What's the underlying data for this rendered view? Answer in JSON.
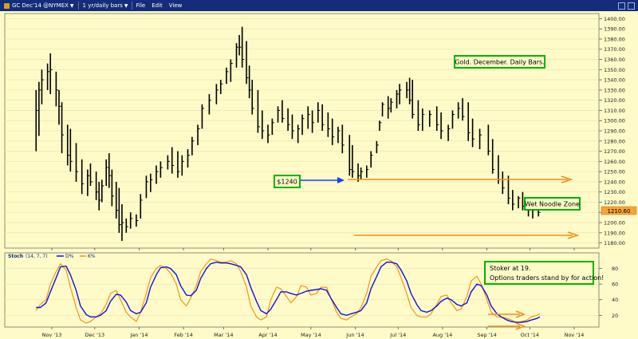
{
  "toolbar": {
    "symbol": "GC Dec'14 @NYMEX",
    "period": "1 yr/daily bars",
    "menu": [
      "File",
      "Edit",
      "View"
    ],
    "symbol_icon": "gold-bar-icon",
    "window_icons": [
      "minimize-icon",
      "maximize-icon"
    ]
  },
  "colors": {
    "background": "#fefbc8",
    "toolbar": "#142c7a",
    "bars": "#000000",
    "pointer_arrow": "#1b3cff",
    "orange_lines": "#f2901e",
    "annotation_border": "#00b400",
    "last_price_badge": "#f5a43a",
    "d_line": "#1010e0",
    "k_line": "#f29518"
  },
  "annotations": {
    "title_box": "Gold. December. Daily Bars.",
    "price_box": "$1240",
    "zone_box": "Wet Noodle Zone",
    "stoch_line1": "Stoker at 19.",
    "stoch_line2": "Options traders stand by for action!"
  },
  "stoch_header": {
    "name": "Stoch",
    "params": "(14, 7, 7)",
    "d_label": "D%",
    "k_label": "K%"
  },
  "chart_data": [
    {
      "type": "bar",
      "subtype": "ohlc",
      "title": "Gold. December. Daily Bars.",
      "x_tick_labels": [
        "Nov '13",
        "Dec '13",
        "Jan '14",
        "Feb '14",
        "Mar '14",
        "Apr '14",
        "May '14",
        "Jun '14",
        "Jul '14",
        "Aug '14",
        "Sep '14",
        "Oct '14",
        "Nov '14"
      ],
      "y_tick_labels": [
        "1180.00",
        "1190.00",
        "1200.00",
        "1210.00",
        "1220.00",
        "1230.00",
        "1240.00",
        "1250.00",
        "1260.00",
        "1270.00",
        "1280.00",
        "1290.00",
        "1300.00",
        "1310.00",
        "1320.00",
        "1330.00",
        "1340.00",
        "1350.00",
        "1360.00",
        "1370.00",
        "1380.00",
        "1390.00",
        "1400.00"
      ],
      "ylim": [
        1175,
        1405
      ],
      "last_price": "1210.60",
      "x": [
        "2013-10-21",
        "2013-10-23",
        "2013-10-25",
        "2013-10-29",
        "2013-10-31",
        "2013-11-04",
        "2013-11-06",
        "2013-11-08",
        "2013-11-12",
        "2013-11-14",
        "2013-11-18",
        "2013-11-22",
        "2013-11-26",
        "2013-11-28",
        "2013-12-02",
        "2013-12-04",
        "2013-12-06",
        "2013-12-09",
        "2013-12-11",
        "2013-12-13",
        "2013-12-16",
        "2013-12-18",
        "2013-12-20",
        "2013-12-23",
        "2013-12-26",
        "2013-12-30",
        "2014-01-02",
        "2014-01-06",
        "2014-01-09",
        "2014-01-13",
        "2014-01-16",
        "2014-01-21",
        "2014-01-24",
        "2014-01-28",
        "2014-01-31",
        "2014-02-04",
        "2014-02-07",
        "2014-02-11",
        "2014-02-14",
        "2014-02-19",
        "2014-02-24",
        "2014-02-27",
        "2014-03-03",
        "2014-03-06",
        "2014-03-10",
        "2014-03-12",
        "2014-03-14",
        "2014-03-17",
        "2014-03-19",
        "2014-03-21",
        "2014-03-25",
        "2014-03-28",
        "2014-04-01",
        "2014-04-04",
        "2014-04-08",
        "2014-04-11",
        "2014-04-15",
        "2014-04-18",
        "2014-04-22",
        "2014-04-25",
        "2014-04-29",
        "2014-05-02",
        "2014-05-06",
        "2014-05-09",
        "2014-05-13",
        "2014-05-16",
        "2014-05-20",
        "2014-05-23",
        "2014-05-28",
        "2014-05-30",
        "2014-06-03",
        "2014-06-05",
        "2014-06-09",
        "2014-06-12",
        "2014-06-16",
        "2014-06-18",
        "2014-06-20",
        "2014-06-24",
        "2014-06-26",
        "2014-06-30",
        "2014-07-02",
        "2014-07-07",
        "2014-07-09",
        "2014-07-11",
        "2014-07-15",
        "2014-07-18",
        "2014-07-23",
        "2014-07-28",
        "2014-07-31",
        "2014-08-05",
        "2014-08-08",
        "2014-08-12",
        "2014-08-15",
        "2014-08-19",
        "2014-08-22",
        "2014-08-27",
        "2014-09-02",
        "2014-09-05",
        "2014-09-09",
        "2014-09-12",
        "2014-09-16",
        "2014-09-19",
        "2014-09-23",
        "2014-09-26",
        "2014-09-30",
        "2014-10-03",
        "2014-10-07"
      ],
      "high": [
        1330,
        1338,
        1350,
        1356,
        1366,
        1348,
        1330,
        1318,
        1296,
        1292,
        1278,
        1262,
        1252,
        1258,
        1250,
        1240,
        1242,
        1262,
        1268,
        1252,
        1240,
        1234,
        1218,
        1204,
        1210,
        1208,
        1228,
        1246,
        1248,
        1256,
        1260,
        1266,
        1274,
        1270,
        1266,
        1272,
        1284,
        1296,
        1316,
        1326,
        1336,
        1340,
        1352,
        1360,
        1376,
        1384,
        1392,
        1378,
        1354,
        1340,
        1330,
        1310,
        1296,
        1302,
        1314,
        1320,
        1312,
        1306,
        1296,
        1306,
        1314,
        1310,
        1318,
        1316,
        1308,
        1302,
        1294,
        1296,
        1286,
        1276,
        1258,
        1254,
        1256,
        1270,
        1280,
        1300,
        1318,
        1324,
        1322,
        1330,
        1336,
        1338,
        1342,
        1340,
        1320,
        1312,
        1310,
        1314,
        1308,
        1296,
        1310,
        1318,
        1322,
        1318,
        1302,
        1292,
        1296,
        1282,
        1266,
        1250,
        1246,
        1232,
        1226,
        1230,
        1222,
        1218,
        1214
      ],
      "low": [
        1270,
        1285,
        1316,
        1330,
        1326,
        1314,
        1296,
        1268,
        1256,
        1250,
        1240,
        1228,
        1226,
        1236,
        1222,
        1212,
        1220,
        1236,
        1234,
        1216,
        1204,
        1190,
        1182,
        1190,
        1194,
        1196,
        1204,
        1224,
        1230,
        1238,
        1244,
        1252,
        1248,
        1244,
        1246,
        1254,
        1266,
        1276,
        1292,
        1306,
        1316,
        1326,
        1336,
        1338,
        1352,
        1364,
        1352,
        1336,
        1322,
        1306,
        1288,
        1282,
        1278,
        1286,
        1298,
        1298,
        1290,
        1282,
        1278,
        1286,
        1292,
        1288,
        1298,
        1290,
        1284,
        1276,
        1278,
        1268,
        1246,
        1244,
        1240,
        1242,
        1244,
        1254,
        1268,
        1290,
        1304,
        1302,
        1308,
        1312,
        1316,
        1322,
        1316,
        1302,
        1290,
        1290,
        1294,
        1290,
        1282,
        1280,
        1292,
        1302,
        1300,
        1280,
        1274,
        1272,
        1266,
        1248,
        1238,
        1228,
        1218,
        1212,
        1214,
        1212,
        1206,
        1204,
        1206
      ],
      "close": [
        1310,
        1330,
        1340,
        1348,
        1350,
        1330,
        1314,
        1286,
        1266,
        1260,
        1250,
        1238,
        1246,
        1240,
        1230,
        1222,
        1236,
        1254,
        1246,
        1226,
        1212,
        1198,
        1200,
        1196,
        1204,
        1202,
        1222,
        1240,
        1242,
        1250,
        1254,
        1260,
        1256,
        1250,
        1260,
        1266,
        1280,
        1292,
        1312,
        1320,
        1330,
        1336,
        1348,
        1356,
        1372,
        1372,
        1360,
        1342,
        1330,
        1312,
        1294,
        1290,
        1286,
        1298,
        1310,
        1302,
        1296,
        1290,
        1292,
        1302,
        1306,
        1298,
        1310,
        1296,
        1292,
        1284,
        1290,
        1276,
        1252,
        1250,
        1246,
        1250,
        1252,
        1266,
        1276,
        1298,
        1316,
        1312,
        1318,
        1326,
        1330,
        1330,
        1320,
        1306,
        1296,
        1306,
        1306,
        1296,
        1290,
        1292,
        1306,
        1312,
        1304,
        1288,
        1282,
        1286,
        1270,
        1252,
        1242,
        1234,
        1224,
        1218,
        1224,
        1216,
        1212,
        1212,
        1210
      ]
    },
    {
      "type": "line",
      "title": "Stoch (14, 7, 7)",
      "x_tick_labels": [
        "Nov '13",
        "Dec '13",
        "Jan '14",
        "Feb '14",
        "Mar '14",
        "Apr '14",
        "May '14",
        "Jun '14",
        "Jul '14",
        "Aug '14",
        "Sep '14",
        "Oct '14",
        "Nov '14"
      ],
      "y_tick_labels": [
        "20",
        "40",
        "60",
        "80"
      ],
      "ylim": [
        5,
        100
      ],
      "x": [
        "2013-10-21",
        "2013-10-24",
        "2013-10-28",
        "2013-10-31",
        "2013-11-04",
        "2013-11-07",
        "2013-11-11",
        "2013-11-14",
        "2013-11-18",
        "2013-11-21",
        "2013-11-25",
        "2013-11-28",
        "2013-12-02",
        "2013-12-05",
        "2013-12-09",
        "2013-12-12",
        "2013-12-16",
        "2013-12-19",
        "2013-12-23",
        "2013-12-26",
        "2013-12-30",
        "2014-01-02",
        "2014-01-06",
        "2014-01-09",
        "2014-01-13",
        "2014-01-16",
        "2014-01-20",
        "2014-01-23",
        "2014-01-27",
        "2014-01-30",
        "2014-02-03",
        "2014-02-06",
        "2014-02-10",
        "2014-02-13",
        "2014-02-17",
        "2014-02-20",
        "2014-02-24",
        "2014-02-27",
        "2014-03-03",
        "2014-03-06",
        "2014-03-10",
        "2014-03-13",
        "2014-03-17",
        "2014-03-20",
        "2014-03-24",
        "2014-03-27",
        "2014-03-31",
        "2014-04-03",
        "2014-04-07",
        "2014-04-10",
        "2014-04-14",
        "2014-04-17",
        "2014-04-21",
        "2014-04-24",
        "2014-04-28",
        "2014-05-01",
        "2014-05-05",
        "2014-05-08",
        "2014-05-12",
        "2014-05-15",
        "2014-05-19",
        "2014-05-22",
        "2014-05-26",
        "2014-05-29",
        "2014-06-02",
        "2014-06-05",
        "2014-06-09",
        "2014-06-12",
        "2014-06-16",
        "2014-06-19",
        "2014-06-23",
        "2014-06-26",
        "2014-06-30",
        "2014-07-03",
        "2014-07-07",
        "2014-07-10",
        "2014-07-14",
        "2014-07-17",
        "2014-07-21",
        "2014-07-24",
        "2014-07-28",
        "2014-07-31",
        "2014-08-04",
        "2014-08-07",
        "2014-08-11",
        "2014-08-14",
        "2014-08-18",
        "2014-08-21",
        "2014-08-25",
        "2014-08-28",
        "2014-09-01",
        "2014-09-04",
        "2014-09-08",
        "2014-09-11",
        "2014-09-15",
        "2014-09-18",
        "2014-09-22",
        "2014-09-25",
        "2014-09-29",
        "2014-10-02",
        "2014-10-06",
        "2014-10-08"
      ],
      "series": [
        {
          "name": "D%",
          "values": [
            30,
            30,
            36,
            50,
            68,
            82,
            83,
            72,
            52,
            32,
            21,
            18,
            18,
            20,
            26,
            38,
            47,
            46,
            37,
            26,
            22,
            24,
            36,
            56,
            72,
            81,
            82,
            80,
            72,
            58,
            46,
            45,
            52,
            67,
            80,
            86,
            88,
            87,
            87,
            86,
            84,
            82,
            72,
            56,
            38,
            26,
            22,
            28,
            40,
            50,
            50,
            48,
            46,
            48,
            51,
            52,
            53,
            54,
            52,
            42,
            30,
            22,
            20,
            22,
            24,
            26,
            36,
            54,
            70,
            82,
            88,
            88,
            86,
            78,
            64,
            48,
            34,
            26,
            24,
            26,
            32,
            38,
            42,
            40,
            34,
            32,
            36,
            50,
            60,
            58,
            46,
            32,
            22,
            18,
            14,
            12,
            11,
            11,
            12,
            14,
            16,
            18
          ]
        },
        {
          "name": "K%",
          "values": [
            26,
            34,
            40,
            60,
            76,
            86,
            78,
            56,
            30,
            14,
            10,
            12,
            18,
            22,
            34,
            48,
            52,
            40,
            24,
            18,
            12,
            24,
            48,
            68,
            80,
            84,
            80,
            74,
            60,
            40,
            32,
            42,
            58,
            76,
            86,
            92,
            90,
            88,
            88,
            90,
            86,
            76,
            56,
            32,
            18,
            14,
            18,
            40,
            56,
            54,
            44,
            36,
            44,
            58,
            56,
            46,
            48,
            56,
            56,
            42,
            24,
            16,
            14,
            18,
            22,
            30,
            48,
            70,
            82,
            90,
            92,
            90,
            82,
            68,
            48,
            30,
            20,
            18,
            18,
            22,
            34,
            44,
            46,
            36,
            26,
            28,
            44,
            64,
            70,
            60,
            40,
            24,
            18,
            18,
            16,
            14,
            10,
            12,
            14,
            18,
            20,
            22
          ]
        }
      ]
    }
  ]
}
